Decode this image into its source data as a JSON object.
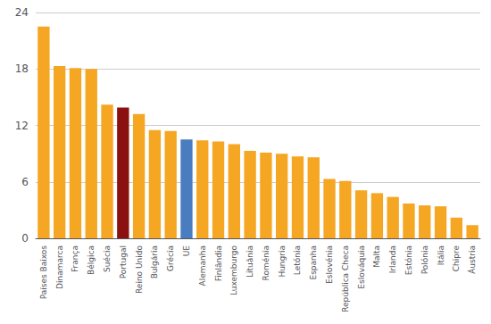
{
  "chart_data": {
    "type": "bar",
    "categories": [
      "Países Baixos",
      "Dinamarca",
      "França",
      "Bélgica",
      "Suécia",
      "Portugal",
      "Reino Unido",
      "Bulgária",
      "Grécia",
      "UE",
      "Alemanha",
      "Finlândia",
      "Luxemburgo",
      "Lituânia",
      "Roménia",
      "Hungria",
      "Letónia",
      "Espanha",
      "Eslovénia",
      "República Checa",
      "Eslováquia",
      "Malta",
      "Irlanda",
      "Estónia",
      "Polónia",
      "Itália",
      "Chipre",
      "Áustria"
    ],
    "values": [
      22.5,
      18.3,
      18.1,
      18.0,
      14.2,
      13.9,
      13.2,
      11.5,
      11.4,
      10.5,
      10.4,
      10.3,
      10.0,
      9.3,
      9.1,
      9.0,
      8.7,
      8.6,
      6.3,
      6.1,
      5.1,
      4.8,
      4.4,
      3.7,
      3.5,
      3.4,
      2.2,
      1.4
    ],
    "colors": [
      "#F5A623",
      "#F5A623",
      "#F5A623",
      "#F5A623",
      "#F5A623",
      "#8B1010",
      "#F5A623",
      "#F5A623",
      "#F5A623",
      "#4A7DC0",
      "#F5A623",
      "#F5A623",
      "#F5A623",
      "#F5A623",
      "#F5A623",
      "#F5A623",
      "#F5A623",
      "#F5A623",
      "#F5A623",
      "#F5A623",
      "#F5A623",
      "#F5A623",
      "#F5A623",
      "#F5A623",
      "#F5A623",
      "#F5A623",
      "#F5A623",
      "#F5A623"
    ],
    "ylim": [
      0,
      24
    ],
    "yticks": [
      0,
      6,
      12,
      18,
      24
    ],
    "grid": true
  }
}
